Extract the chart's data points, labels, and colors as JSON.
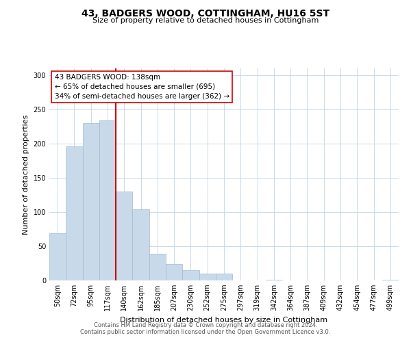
{
  "title": "43, BADGERS WOOD, COTTINGHAM, HU16 5ST",
  "subtitle": "Size of property relative to detached houses in Cottingham",
  "xlabel": "Distribution of detached houses by size in Cottingham",
  "ylabel": "Number of detached properties",
  "bar_color": "#c8daea",
  "bar_edge_color": "#a0bbd0",
  "vline_color": "#cc0000",
  "vline_bar_index": 4,
  "annotation_text_line1": "43 BADGERS WOOD: 138sqm",
  "annotation_text_line2": "← 65% of detached houses are smaller (695)",
  "annotation_text_line3": "34% of semi-detached houses are larger (362) →",
  "bin_labels": [
    "50sqm",
    "72sqm",
    "95sqm",
    "117sqm",
    "140sqm",
    "162sqm",
    "185sqm",
    "207sqm",
    "230sqm",
    "252sqm",
    "275sqm",
    "297sqm",
    "319sqm",
    "342sqm",
    "364sqm",
    "387sqm",
    "409sqm",
    "432sqm",
    "454sqm",
    "477sqm",
    "499sqm"
  ],
  "bar_heights": [
    69,
    196,
    230,
    234,
    130,
    104,
    39,
    24,
    15,
    10,
    10,
    0,
    0,
    1,
    0,
    0,
    0,
    0,
    0,
    0,
    1
  ],
  "ylim": [
    0,
    310
  ],
  "yticks": [
    0,
    50,
    100,
    150,
    200,
    250,
    300
  ],
  "footer_line1": "Contains HM Land Registry data © Crown copyright and database right 2024.",
  "footer_line2": "Contains public sector information licensed under the Open Government Licence v3.0.",
  "bg_color": "#ffffff",
  "grid_color": "#c8daea"
}
